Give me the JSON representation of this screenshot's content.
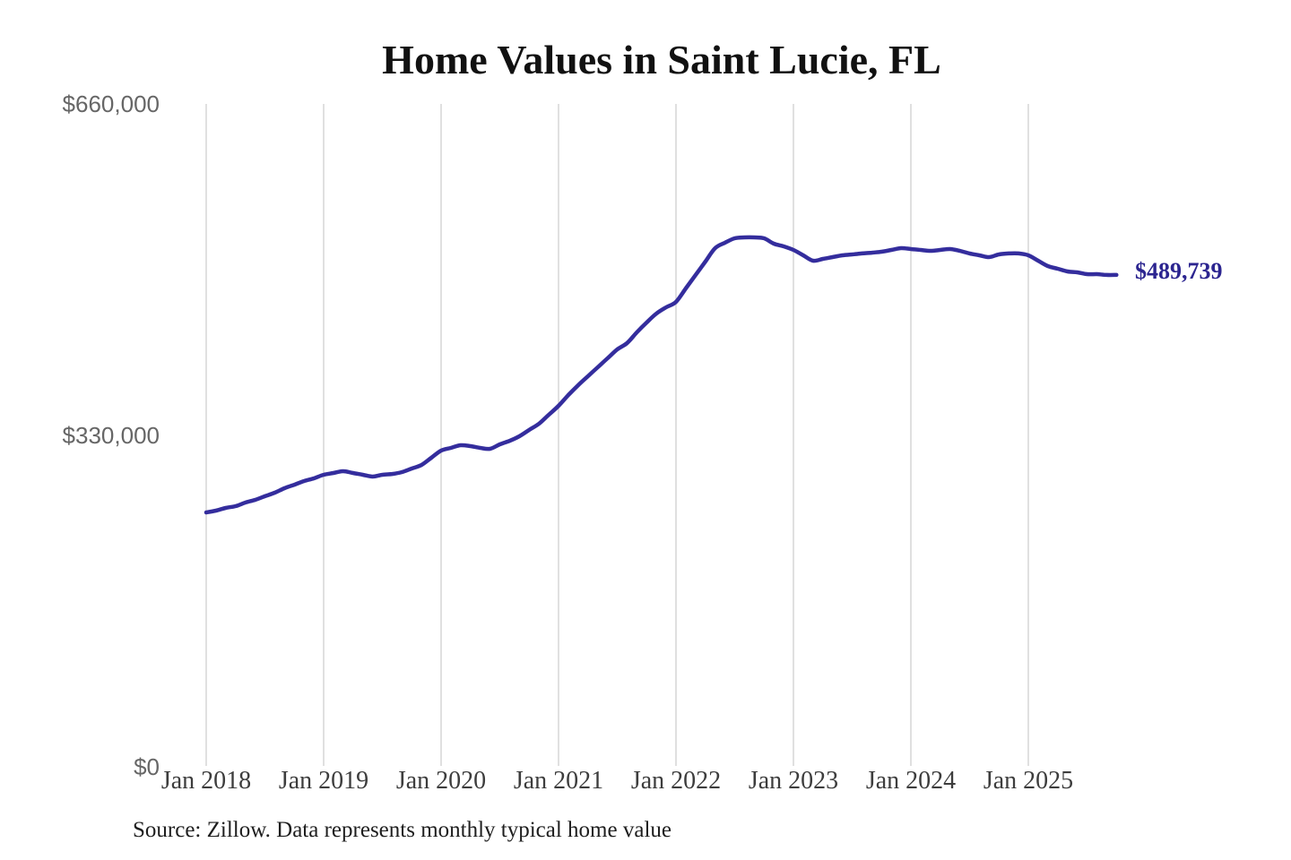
{
  "title": "Home Values in Saint Lucie, FL",
  "source_note": "Source: Zillow. Data represents monthly typical home value",
  "colors": {
    "background": "#ffffff",
    "line": "#342d9d",
    "end_label": "#2c2590",
    "gridline": "#cbcbcb",
    "title_text": "#111111",
    "y_tick_text": "#666666",
    "x_tick_text": "#3d3d3d",
    "source_text": "#1e1e1e"
  },
  "chart_data": {
    "type": "line",
    "title": "Home Values in Saint Lucie, FL",
    "xlabel": "",
    "ylabel": "",
    "ylim": [
      0,
      660000
    ],
    "grid": "vertical-only",
    "legend": "none",
    "x_tick_labels": [
      "Jan 2018",
      "Jan 2019",
      "Jan 2020",
      "Jan 2021",
      "Jan 2022",
      "Jan 2023",
      "Jan 2024",
      "Jan 2025"
    ],
    "y_ticks": [
      {
        "label": "$0",
        "value": 0
      },
      {
        "label": "$330,000",
        "value": 330000
      },
      {
        "label": "$660,000",
        "value": 660000
      }
    ],
    "series": [
      {
        "name": "Monthly typical home value",
        "start_label": "Jan 2018",
        "frequency": "monthly",
        "values": [
          253300,
          255100,
          257800,
          259500,
          263100,
          265800,
          269400,
          272900,
          277400,
          280900,
          284500,
          287200,
          290800,
          292500,
          294300,
          292500,
          290800,
          289000,
          290800,
          291600,
          293400,
          297000,
          300600,
          307700,
          314800,
          317500,
          320200,
          319300,
          317500,
          316600,
          321100,
          324600,
          329100,
          335400,
          341600,
          350500,
          359400,
          370100,
          379900,
          388900,
          397800,
          406700,
          415600,
          421900,
          432600,
          442400,
          451300,
          457500,
          462900,
          476300,
          489600,
          503000,
          516400,
          521800,
          526200,
          527100,
          527100,
          526200,
          520900,
          518200,
          514600,
          509300,
          503900,
          505700,
          507500,
          509300,
          510200,
          511100,
          511900,
          512800,
          514600,
          516400,
          515500,
          514600,
          513700,
          514600,
          515500,
          513700,
          511100,
          509300,
          507500,
          510200,
          511100,
          511100,
          509300,
          503900,
          498600,
          495900,
          493200,
          492300,
          490500,
          490500,
          489700,
          489739
        ]
      }
    ],
    "last_point": {
      "value": 489739,
      "label": "$489,739"
    }
  }
}
